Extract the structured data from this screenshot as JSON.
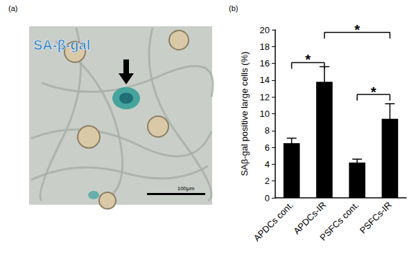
{
  "panel_a": {
    "label": "(a)",
    "stain_text": "SA-β-gal",
    "scale_bar": "100μm"
  },
  "panel_b": {
    "label": "(b)"
  },
  "chart_data": {
    "type": "bar",
    "y_label": "SAβ-gal positive large cells (%)",
    "categories": [
      "APDCs cont.",
      "APDCs-IR",
      "PSFCs cont.",
      "PSFCs-IR"
    ],
    "values": [
      6.5,
      13.8,
      4.2,
      9.4
    ],
    "errors": [
      0.6,
      1.8,
      0.4,
      1.8
    ],
    "color": "#000000",
    "ylim": [
      0,
      20
    ],
    "yticks": [
      0,
      2,
      4,
      6,
      8,
      10,
      12,
      14,
      16,
      18,
      20
    ],
    "grid": false,
    "significance": [
      {
        "from": 0,
        "to": 1,
        "y": 16.1,
        "label": "*"
      },
      {
        "from": 1,
        "to": 3,
        "y": 19.7,
        "label": "*"
      },
      {
        "from": 2,
        "to": 3,
        "y": 12.3,
        "label": "*"
      }
    ]
  }
}
